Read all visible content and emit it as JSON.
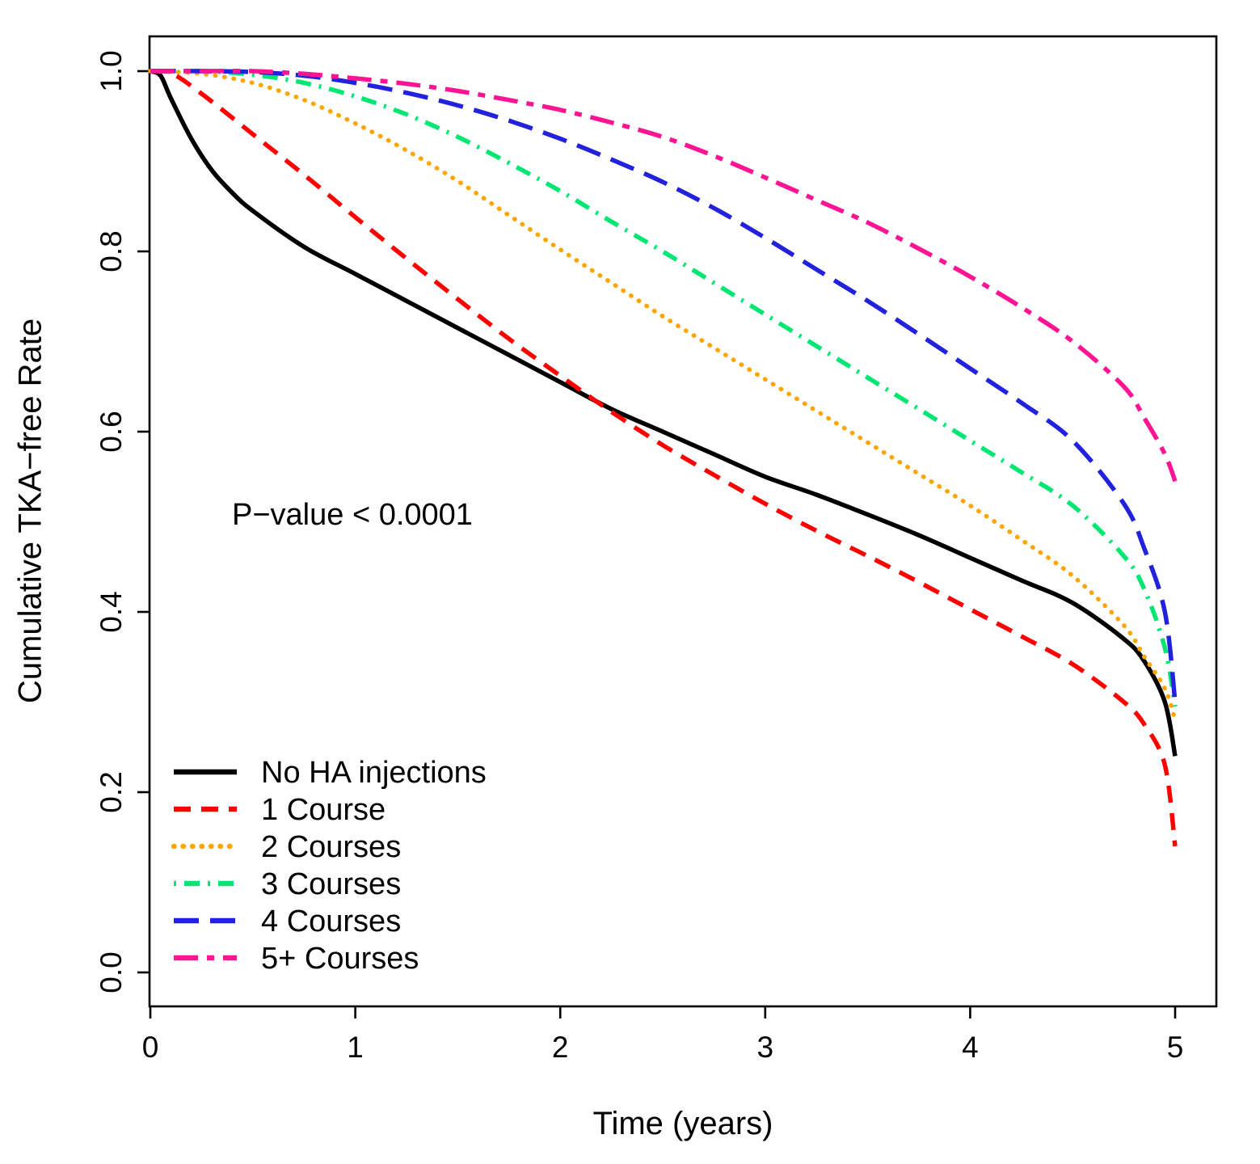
{
  "chart_data": {
    "type": "line",
    "subtype": "kaplan-meier-survival",
    "title": "",
    "xlabel": "Time (years)",
    "ylabel": "Cumulative TKA−free Rate",
    "annotation": "P−value < 0.0001",
    "xlim": [
      0,
      5
    ],
    "ylim": [
      0.0,
      1.0
    ],
    "x_ticks": [
      "0",
      "1",
      "2",
      "3",
      "4",
      "5"
    ],
    "y_ticks": [
      "0.0",
      "0.2",
      "0.4",
      "0.6",
      "0.8",
      "1.0"
    ],
    "grid": false,
    "legend_position": "bottom-left",
    "series": [
      {
        "name": "No HA injections",
        "color": "#000000",
        "dash": "solid",
        "points": [
          [
            0,
            1.0
          ],
          [
            0.05,
            0.995
          ],
          [
            0.1,
            0.97
          ],
          [
            0.2,
            0.925
          ],
          [
            0.3,
            0.89
          ],
          [
            0.4,
            0.865
          ],
          [
            0.5,
            0.845
          ],
          [
            0.75,
            0.805
          ],
          [
            1,
            0.775
          ],
          [
            1.25,
            0.745
          ],
          [
            1.5,
            0.715
          ],
          [
            1.75,
            0.685
          ],
          [
            2,
            0.655
          ],
          [
            2.25,
            0.625
          ],
          [
            2.5,
            0.6
          ],
          [
            2.75,
            0.575
          ],
          [
            3,
            0.55
          ],
          [
            3.25,
            0.53
          ],
          [
            3.5,
            0.508
          ],
          [
            3.75,
            0.485
          ],
          [
            4,
            0.46
          ],
          [
            4.25,
            0.435
          ],
          [
            4.5,
            0.41
          ],
          [
            4.75,
            0.37
          ],
          [
            4.85,
            0.345
          ],
          [
            4.95,
            0.3
          ],
          [
            5,
            0.24
          ]
        ]
      },
      {
        "name": "1 Course",
        "color": "#FF0000",
        "dash": "dashed",
        "points": [
          [
            0,
            1.0
          ],
          [
            0.1,
            0.998
          ],
          [
            0.25,
            0.975
          ],
          [
            0.5,
            0.93
          ],
          [
            0.75,
            0.885
          ],
          [
            1,
            0.838
          ],
          [
            1.25,
            0.792
          ],
          [
            1.5,
            0.747
          ],
          [
            1.75,
            0.703
          ],
          [
            2,
            0.662
          ],
          [
            2.25,
            0.622
          ],
          [
            2.5,
            0.585
          ],
          [
            2.75,
            0.552
          ],
          [
            3,
            0.52
          ],
          [
            3.25,
            0.49
          ],
          [
            3.5,
            0.462
          ],
          [
            3.75,
            0.433
          ],
          [
            4,
            0.403
          ],
          [
            4.25,
            0.373
          ],
          [
            4.5,
            0.342
          ],
          [
            4.75,
            0.3
          ],
          [
            4.85,
            0.275
          ],
          [
            4.95,
            0.23
          ],
          [
            5,
            0.14
          ]
        ]
      },
      {
        "name": "2 Courses",
        "color": "#FFA500",
        "dash": "dotted",
        "points": [
          [
            0,
            1.0
          ],
          [
            0.25,
            0.997
          ],
          [
            0.5,
            0.987
          ],
          [
            0.75,
            0.968
          ],
          [
            1,
            0.942
          ],
          [
            1.25,
            0.912
          ],
          [
            1.5,
            0.878
          ],
          [
            1.75,
            0.84
          ],
          [
            2,
            0.802
          ],
          [
            2.25,
            0.765
          ],
          [
            2.5,
            0.728
          ],
          [
            2.75,
            0.693
          ],
          [
            3,
            0.658
          ],
          [
            3.25,
            0.623
          ],
          [
            3.5,
            0.588
          ],
          [
            3.75,
            0.553
          ],
          [
            4,
            0.518
          ],
          [
            4.25,
            0.48
          ],
          [
            4.5,
            0.44
          ],
          [
            4.75,
            0.385
          ],
          [
            4.85,
            0.35
          ],
          [
            4.95,
            0.315
          ],
          [
            5,
            0.28
          ]
        ]
      },
      {
        "name": "3 Courses",
        "color": "#00E673",
        "dash": "dotdash",
        "points": [
          [
            0,
            1.0
          ],
          [
            0.25,
            1.0
          ],
          [
            0.5,
            0.996
          ],
          [
            0.75,
            0.987
          ],
          [
            1,
            0.972
          ],
          [
            1.25,
            0.952
          ],
          [
            1.5,
            0.927
          ],
          [
            1.75,
            0.898
          ],
          [
            2,
            0.867
          ],
          [
            2.25,
            0.833
          ],
          [
            2.5,
            0.8
          ],
          [
            2.75,
            0.765
          ],
          [
            3,
            0.73
          ],
          [
            3.25,
            0.695
          ],
          [
            3.5,
            0.66
          ],
          [
            3.75,
            0.625
          ],
          [
            4,
            0.59
          ],
          [
            4.25,
            0.555
          ],
          [
            4.5,
            0.518
          ],
          [
            4.75,
            0.462
          ],
          [
            4.85,
            0.425
          ],
          [
            4.95,
            0.36
          ],
          [
            5,
            0.295
          ]
        ]
      },
      {
        "name": "4 Courses",
        "color": "#2222DD",
        "dash": "longdash",
        "points": [
          [
            0,
            1.0
          ],
          [
            0.25,
            1.0
          ],
          [
            0.5,
            0.999
          ],
          [
            0.75,
            0.995
          ],
          [
            1,
            0.987
          ],
          [
            1.25,
            0.976
          ],
          [
            1.5,
            0.962
          ],
          [
            1.75,
            0.945
          ],
          [
            2,
            0.925
          ],
          [
            2.25,
            0.902
          ],
          [
            2.5,
            0.877
          ],
          [
            2.75,
            0.848
          ],
          [
            3,
            0.815
          ],
          [
            3.25,
            0.78
          ],
          [
            3.5,
            0.745
          ],
          [
            3.75,
            0.708
          ],
          [
            4,
            0.67
          ],
          [
            4.25,
            0.632
          ],
          [
            4.5,
            0.59
          ],
          [
            4.75,
            0.52
          ],
          [
            4.85,
            0.47
          ],
          [
            4.95,
            0.4
          ],
          [
            5,
            0.3
          ]
        ]
      },
      {
        "name": "5+ Courses",
        "color": "#FF1493",
        "dash": "twodash",
        "points": [
          [
            0,
            1.0
          ],
          [
            0.25,
            1.0
          ],
          [
            0.5,
            1.0
          ],
          [
            0.75,
            0.997
          ],
          [
            1,
            0.992
          ],
          [
            1.25,
            0.986
          ],
          [
            1.5,
            0.978
          ],
          [
            1.75,
            0.968
          ],
          [
            2,
            0.957
          ],
          [
            2.25,
            0.943
          ],
          [
            2.5,
            0.927
          ],
          [
            2.75,
            0.906
          ],
          [
            3,
            0.882
          ],
          [
            3.25,
            0.857
          ],
          [
            3.5,
            0.832
          ],
          [
            3.75,
            0.803
          ],
          [
            4,
            0.772
          ],
          [
            4.25,
            0.738
          ],
          [
            4.5,
            0.7
          ],
          [
            4.75,
            0.65
          ],
          [
            4.85,
            0.615
          ],
          [
            4.95,
            0.575
          ],
          [
            5,
            0.545
          ]
        ]
      }
    ]
  }
}
